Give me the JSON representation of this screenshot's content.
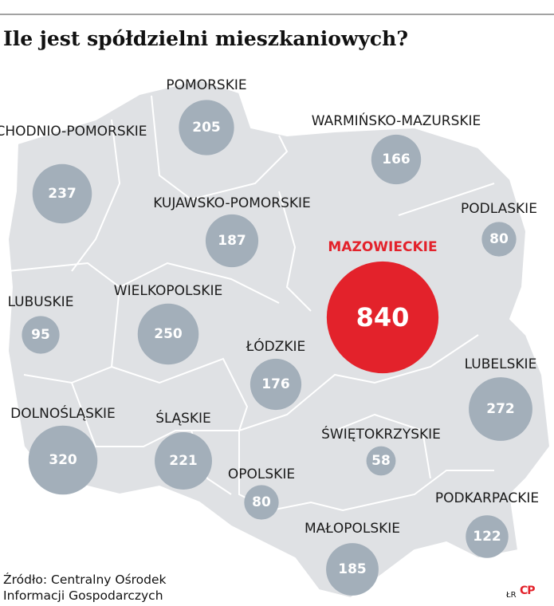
{
  "title": "Ile jest spółdzielni mieszkaniowych?",
  "highlight_color": "#e3222b",
  "bubble_color": "#a3afba",
  "regions": [
    {
      "name": "POMORSKIE",
      "value": 205
    },
    {
      "name": "WARMIŃSKO-MAZURSKIE",
      "value": 166
    },
    {
      "name": "ZACHODNIO-POMORSKIE",
      "value": 237
    },
    {
      "name": "KUJAWSKO-POMORSKIE",
      "value": 187
    },
    {
      "name": "PODLASKIE",
      "value": 80
    },
    {
      "name": "MAZOWIECKIE",
      "value": 840,
      "highlight": true
    },
    {
      "name": "LUBUSKIE",
      "value": 95
    },
    {
      "name": "WIELKOPOLSKIE",
      "value": 250
    },
    {
      "name": "ŁÓDZKIE",
      "value": 176
    },
    {
      "name": "LUBELSKIE",
      "value": 272
    },
    {
      "name": "DOLNOŚLĄSKIE",
      "value": 320
    },
    {
      "name": "ŚLĄSKIE",
      "value": 221
    },
    {
      "name": "ŚWIĘTOKRZYSKIE",
      "value": 58
    },
    {
      "name": "OPOLSKIE",
      "value": 80
    },
    {
      "name": "PODKARPACKIE",
      "value": 122
    },
    {
      "name": "MAŁOPOLSKIE",
      "value": 185
    }
  ],
  "source": [
    "Źródło: Centralny Ośrodek",
    "Informacji Gospodarczych"
  ],
  "credit": "ŁR",
  "logo": "CP"
}
